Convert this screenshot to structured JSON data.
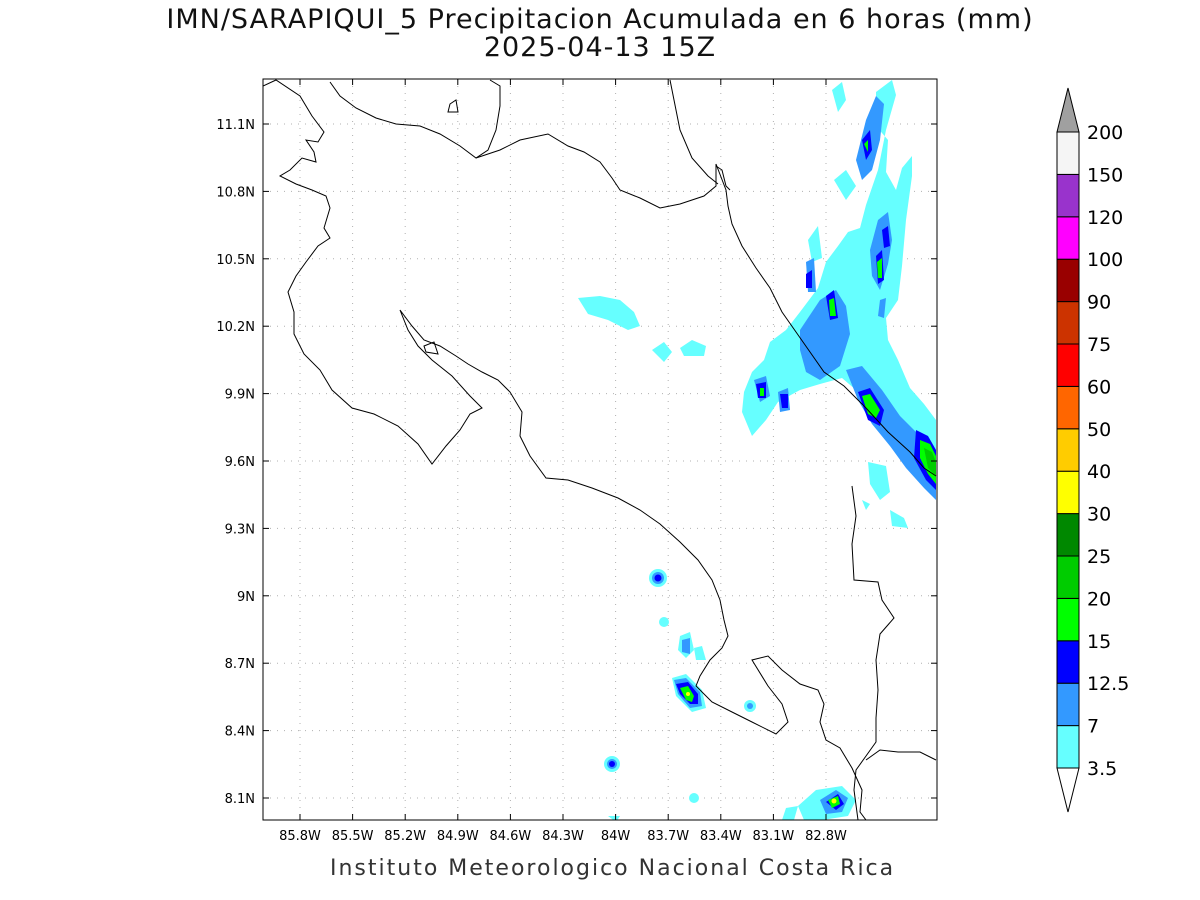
{
  "title": {
    "line1": "IMN/SARAPIQUI_5 Precipitacion Acumulada en 6 horas (mm)",
    "line2": "2025-04-13 15Z"
  },
  "footer": "Instituto Meteorologico Nacional Costa Rica",
  "map": {
    "lon_range": [
      -86.05,
      -82.55
    ],
    "lat_range": [
      8.0,
      11.3
    ],
    "lon_ticks": [
      "85.8W",
      "85.5W",
      "85.2W",
      "84.9W",
      "84.6W",
      "84.3W",
      "84W",
      "83.7W",
      "83.4W",
      "83.1W",
      "82.8W"
    ],
    "lat_ticks": [
      "11.1N",
      "10.8N",
      "10.5N",
      "10.2N",
      "9.9N",
      "9.6N",
      "9.3N",
      "9N",
      "8.7N",
      "8.4N",
      "8.1N"
    ],
    "grid": true
  },
  "colorbar": {
    "levels": [
      "3.5",
      "7",
      "12.5",
      "15",
      "20",
      "25",
      "30",
      "40",
      "50",
      "60",
      "75",
      "90",
      "100",
      "120",
      "150",
      "200"
    ],
    "colors": [
      "#66ffff",
      "#3399ff",
      "#0000ff",
      "#00ff00",
      "#00cc00",
      "#008800",
      "#ffff00",
      "#ffcc00",
      "#ff6600",
      "#ff0000",
      "#cc3300",
      "#990000",
      "#ff00ff",
      "#9933cc",
      "#f5f5f5",
      "#a0a0a0"
    ],
    "under_color": "#ffffff",
    "over_color": "#a0a0a0"
  }
}
